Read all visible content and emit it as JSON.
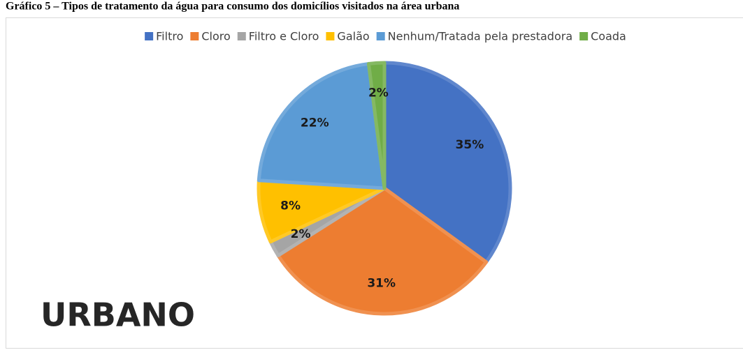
{
  "chart_data": {
    "type": "pie",
    "title": "Gráfico 5 – Tipos de tratamento da água para consumo dos domicílios visitados na área urbana",
    "annotation": "URBANO",
    "categories": [
      "Filtro",
      "Cloro",
      "Filtro e Cloro",
      "Galão",
      "Nenhum/Tratada pela prestadora",
      "Coada"
    ],
    "values": [
      35,
      31,
      2,
      8,
      22,
      2
    ],
    "value_labels": [
      "35%",
      "31%",
      "2%",
      "8%",
      "22%",
      "2%"
    ],
    "colors": [
      "#4472c4",
      "#ed7d31",
      "#a5a5a5",
      "#ffc000",
      "#5b9bd5",
      "#70ad47"
    ],
    "legend": "top"
  }
}
